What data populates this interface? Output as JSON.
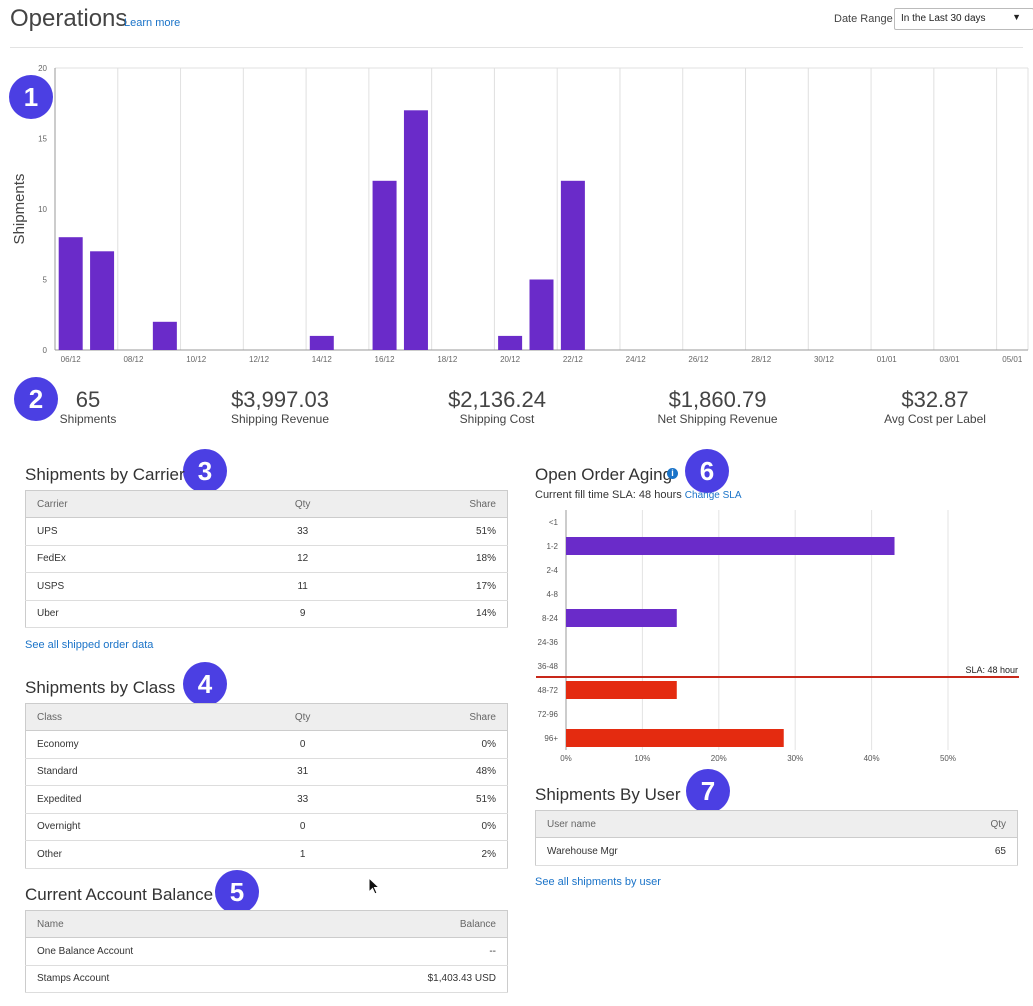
{
  "header": {
    "title": "Operations",
    "learn_more": "Learn more",
    "date_range_label": "Date Range",
    "date_range_value": "In the Last 30 days"
  },
  "badges": [
    "1",
    "2",
    "3",
    "4",
    "5",
    "6",
    "7"
  ],
  "colors": {
    "bar": "#6a2bc9",
    "overdue": "#e42b10",
    "sla_line": "#c8281a",
    "badge": "#4b3fe3",
    "link": "#1a73c8"
  },
  "chart_data": [
    {
      "type": "bar",
      "title": "",
      "xlabel": "",
      "ylabel": "Shipments",
      "ylim": [
        0,
        20
      ],
      "yticks": [
        0,
        5,
        10,
        15,
        20
      ],
      "x_tick_labels": [
        "06/12",
        "08/12",
        "10/12",
        "12/12",
        "14/12",
        "16/12",
        "18/12",
        "20/12",
        "22/12",
        "24/12",
        "26/12",
        "28/12",
        "30/12",
        "01/01",
        "03/01",
        "05/01"
      ],
      "categories": [
        "06/12",
        "07/12",
        "08/12",
        "09/12",
        "10/12",
        "11/12",
        "12/12",
        "13/12",
        "14/12",
        "15/12",
        "16/12",
        "17/12",
        "18/12",
        "19/12",
        "20/12",
        "21/12",
        "22/12",
        "23/12",
        "24/12",
        "25/12",
        "26/12",
        "27/12",
        "28/12",
        "29/12",
        "30/12",
        "31/12",
        "01/01",
        "02/01",
        "03/01",
        "04/01",
        "05/01"
      ],
      "values": [
        8,
        7,
        0,
        2,
        0,
        0,
        0,
        0,
        1,
        0,
        12,
        17,
        0,
        0,
        1,
        5,
        12,
        0,
        0,
        0,
        0,
        0,
        0,
        0,
        0,
        0,
        0,
        0,
        0,
        0,
        0
      ],
      "grid": true
    },
    {
      "type": "bar",
      "orientation": "horizontal",
      "title": "",
      "categories": [
        "<1",
        "1-2",
        "2-4",
        "4-8",
        "8-24",
        "24-36",
        "36-48",
        "48-72",
        "72-96",
        "96+"
      ],
      "values": [
        0,
        43,
        0,
        0,
        14.5,
        0,
        0,
        14.5,
        0,
        28.5
      ],
      "unit": "%",
      "xlim": [
        0,
        50
      ],
      "xticks": [
        "0%",
        "10%",
        "20%",
        "30%",
        "40%",
        "50%"
      ],
      "threshold_label": "SLA: 48 hour",
      "threshold_after_category": "36-48",
      "grid": true
    }
  ],
  "stats": [
    {
      "value": "65",
      "label": "Shipments"
    },
    {
      "value": "$3,997.03",
      "label": "Shipping Revenue"
    },
    {
      "value": "$2,136.24",
      "label": "Shipping Cost"
    },
    {
      "value": "$1,860.79",
      "label": "Net Shipping Revenue"
    },
    {
      "value": "$32.87",
      "label": "Avg Cost per Label"
    }
  ],
  "carrier": {
    "title": "Shipments by Carrier",
    "headers": [
      "Carrier",
      "Qty",
      "Share"
    ],
    "rows": [
      [
        "UPS",
        "33",
        "51%"
      ],
      [
        "FedEx",
        "12",
        "18%"
      ],
      [
        "USPS",
        "11",
        "17%"
      ],
      [
        "Uber",
        "9",
        "14%"
      ]
    ],
    "link": "See all shipped order data"
  },
  "class_table": {
    "title": "Shipments by Class",
    "headers": [
      "Class",
      "Qty",
      "Share"
    ],
    "rows": [
      [
        "Economy",
        "0",
        "0%"
      ],
      [
        "Standard",
        "31",
        "48%"
      ],
      [
        "Expedited",
        "33",
        "51%"
      ],
      [
        "Overnight",
        "0",
        "0%"
      ],
      [
        "Other",
        "1",
        "2%"
      ]
    ]
  },
  "balance": {
    "title": "Current Account Balance",
    "headers": [
      "Name",
      "Balance"
    ],
    "rows": [
      [
        "One Balance Account",
        "--"
      ],
      [
        "Stamps Account",
        "$1,403.43 USD"
      ]
    ]
  },
  "aging": {
    "title": "Open Order Aging",
    "sla_text": "Current fill time SLA: 48 hours",
    "change_sla": "Change SLA"
  },
  "users": {
    "title": "Shipments By User",
    "headers": [
      "User name",
      "Qty"
    ],
    "rows": [
      [
        "Warehouse Mgr",
        "65"
      ]
    ],
    "link": "See all shipments by user"
  }
}
